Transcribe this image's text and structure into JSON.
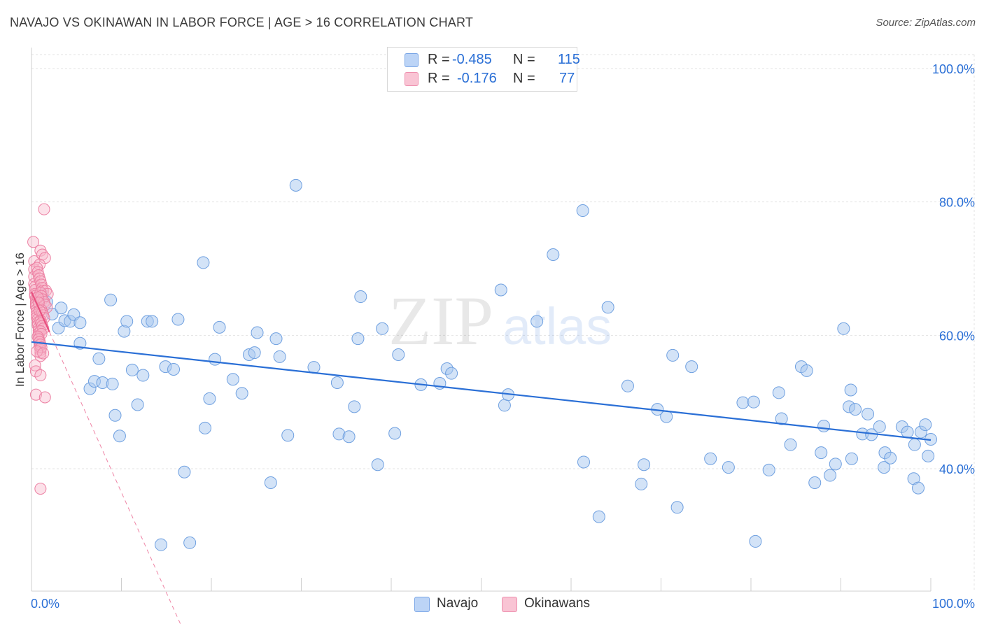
{
  "title": "NAVAJO VS OKINAWAN IN LABOR FORCE | AGE > 16 CORRELATION CHART",
  "source": "Source: ZipAtlas.com",
  "watermark": {
    "zip": "ZIP",
    "atlas": "atlas"
  },
  "legend": {
    "rows": [
      {
        "r_label": "R =",
        "r_value": "-0.485",
        "n_label": "N =",
        "n_value": "115"
      },
      {
        "r_label": "R =",
        "r_value": "-0.176",
        "n_label": "N =",
        "n_value": "77"
      }
    ]
  },
  "bottom_legend": {
    "navajo": "Navajo",
    "okinawans": "Okinawans"
  },
  "colors": {
    "navajo_fill": "#a8c8f0",
    "navajo_stroke": "#6fa0e0",
    "navajo_line": "#2a6fd6",
    "okinawan_fill": "#f7b3c8",
    "okinawan_stroke": "#ec7fa2",
    "okinawan_line": "#e8507f",
    "axis_text": "#2a6fd6"
  },
  "chart_data": {
    "type": "scatter",
    "title": "NAVAJO VS OKINAWAN IN LABOR FORCE | AGE > 16 CORRELATION CHART",
    "xlabel": "",
    "ylabel": "In Labor Force | Age > 16",
    "xlim": [
      0,
      100
    ],
    "ylim": [
      20,
      100
    ],
    "x_tick_labels": [
      "0.0%",
      "100.0%"
    ],
    "y_tick_labels": [
      "100.0%",
      "80.0%",
      "60.0%",
      "40.0%"
    ],
    "y_ticks": [
      100,
      80,
      60,
      40
    ],
    "series": [
      {
        "name": "Navajo",
        "trend": {
          "x": [
            0,
            100
          ],
          "y": [
            59.0,
            44.3
          ]
        },
        "points": [
          [
            1.2,
            66.1
          ],
          [
            1.7,
            65.0
          ],
          [
            2.3,
            63.2
          ],
          [
            3.0,
            61.1
          ],
          [
            3.3,
            64.1
          ],
          [
            3.7,
            62.2
          ],
          [
            4.3,
            62.1
          ],
          [
            4.7,
            63.1
          ],
          [
            5.4,
            61.9
          ],
          [
            5.4,
            58.8
          ],
          [
            6.5,
            52.0
          ],
          [
            7.0,
            53.1
          ],
          [
            7.5,
            56.5
          ],
          [
            7.9,
            52.9
          ],
          [
            8.8,
            65.3
          ],
          [
            9.3,
            48.0
          ],
          [
            9.8,
            44.9
          ],
          [
            10.3,
            60.6
          ],
          [
            10.6,
            62.1
          ],
          [
            11.2,
            54.8
          ],
          [
            11.8,
            49.6
          ],
          [
            12.4,
            54.0
          ],
          [
            12.9,
            62.1
          ],
          [
            13.4,
            62.1
          ],
          [
            14.4,
            28.6
          ],
          [
            14.9,
            55.3
          ],
          [
            15.8,
            54.9
          ],
          [
            16.3,
            62.4
          ],
          [
            17.0,
            39.5
          ],
          [
            17.6,
            28.9
          ],
          [
            19.1,
            70.9
          ],
          [
            19.3,
            46.1
          ],
          [
            19.8,
            50.5
          ],
          [
            20.4,
            56.4
          ],
          [
            20.9,
            61.2
          ],
          [
            22.4,
            53.4
          ],
          [
            23.4,
            51.3
          ],
          [
            24.2,
            57.1
          ],
          [
            24.8,
            57.4
          ],
          [
            25.1,
            60.4
          ],
          [
            26.6,
            37.9
          ],
          [
            27.2,
            59.5
          ],
          [
            27.6,
            56.8
          ],
          [
            28.5,
            45.0
          ],
          [
            29.4,
            82.5
          ],
          [
            31.4,
            55.2
          ],
          [
            34.0,
            52.9
          ],
          [
            34.2,
            45.2
          ],
          [
            35.3,
            44.8
          ],
          [
            35.9,
            49.3
          ],
          [
            36.3,
            59.5
          ],
          [
            36.6,
            65.8
          ],
          [
            38.5,
            40.6
          ],
          [
            39.0,
            61.0
          ],
          [
            40.4,
            45.3
          ],
          [
            40.8,
            57.1
          ],
          [
            43.3,
            52.6
          ],
          [
            45.4,
            52.8
          ],
          [
            46.2,
            55.0
          ],
          [
            46.7,
            54.3
          ],
          [
            52.2,
            66.8
          ],
          [
            52.6,
            49.5
          ],
          [
            53.0,
            51.1
          ],
          [
            56.2,
            62.1
          ],
          [
            58.0,
            72.1
          ],
          [
            61.3,
            78.7
          ],
          [
            61.4,
            41.0
          ],
          [
            63.1,
            32.8
          ],
          [
            64.1,
            64.2
          ],
          [
            66.3,
            52.4
          ],
          [
            67.8,
            37.7
          ],
          [
            68.1,
            40.6
          ],
          [
            69.6,
            48.9
          ],
          [
            70.6,
            47.8
          ],
          [
            71.3,
            57.0
          ],
          [
            71.8,
            34.2
          ],
          [
            73.4,
            55.3
          ],
          [
            75.5,
            41.5
          ],
          [
            77.5,
            40.2
          ],
          [
            79.1,
            49.9
          ],
          [
            80.3,
            50.0
          ],
          [
            80.5,
            29.1
          ],
          [
            82.0,
            39.8
          ],
          [
            83.1,
            51.4
          ],
          [
            83.4,
            47.5
          ],
          [
            84.4,
            43.6
          ],
          [
            85.6,
            55.3
          ],
          [
            86.2,
            54.7
          ],
          [
            87.1,
            37.9
          ],
          [
            87.8,
            42.4
          ],
          [
            88.1,
            46.4
          ],
          [
            88.8,
            39.0
          ],
          [
            89.4,
            40.7
          ],
          [
            90.3,
            61.0
          ],
          [
            90.9,
            49.3
          ],
          [
            91.1,
            51.8
          ],
          [
            91.2,
            41.5
          ],
          [
            91.6,
            48.9
          ],
          [
            92.4,
            45.2
          ],
          [
            93.0,
            48.2
          ],
          [
            93.4,
            45.1
          ],
          [
            94.3,
            46.3
          ],
          [
            94.8,
            40.2
          ],
          [
            94.9,
            42.4
          ],
          [
            95.5,
            41.6
          ],
          [
            96.8,
            46.3
          ],
          [
            97.4,
            45.5
          ],
          [
            98.1,
            38.5
          ],
          [
            98.2,
            43.6
          ],
          [
            98.6,
            37.1
          ],
          [
            98.9,
            45.5
          ],
          [
            99.4,
            46.6
          ],
          [
            99.7,
            41.9
          ],
          [
            100.0,
            44.4
          ],
          [
            9.0,
            52.7
          ]
        ]
      },
      {
        "name": "Okinawans",
        "trend": {
          "x": [
            0,
            2.0
          ],
          "y": [
            66.5,
            60.5
          ]
        },
        "trend_dashed": {
          "x": [
            2.0,
            17.0
          ],
          "y": [
            60.5,
            15.4
          ]
        },
        "points": [
          [
            0.2,
            74.0
          ],
          [
            0.3,
            71.1
          ],
          [
            0.3,
            69.9
          ],
          [
            0.3,
            68.8
          ],
          [
            0.3,
            67.7
          ],
          [
            0.4,
            67.3
          ],
          [
            0.4,
            66.8
          ],
          [
            0.4,
            66.2
          ],
          [
            0.4,
            65.9
          ],
          [
            0.5,
            65.5
          ],
          [
            0.5,
            65.0
          ],
          [
            0.5,
            64.7
          ],
          [
            0.5,
            64.3
          ],
          [
            0.6,
            63.9
          ],
          [
            0.6,
            63.5
          ],
          [
            0.6,
            63.1
          ],
          [
            0.6,
            62.7
          ],
          [
            0.7,
            62.4
          ],
          [
            0.7,
            61.9
          ],
          [
            0.7,
            61.5
          ],
          [
            0.8,
            61.1
          ],
          [
            0.8,
            60.7
          ],
          [
            0.8,
            60.3
          ],
          [
            0.8,
            59.6
          ],
          [
            0.9,
            59.1
          ],
          [
            0.9,
            58.7
          ],
          [
            0.9,
            58.3
          ],
          [
            1.0,
            57.8
          ],
          [
            1.0,
            57.4
          ],
          [
            1.0,
            56.9
          ],
          [
            0.4,
            55.5
          ],
          [
            0.5,
            54.6
          ],
          [
            1.0,
            54.0
          ],
          [
            0.5,
            51.1
          ],
          [
            1.5,
            50.7
          ],
          [
            1.0,
            37.0
          ],
          [
            1.4,
            78.9
          ],
          [
            1.0,
            72.7
          ],
          [
            1.2,
            72.1
          ],
          [
            1.5,
            71.6
          ],
          [
            0.9,
            70.6
          ],
          [
            0.6,
            70.1
          ],
          [
            0.7,
            69.5
          ],
          [
            0.8,
            69.0
          ],
          [
            0.9,
            68.5
          ],
          [
            1.0,
            68.1
          ],
          [
            1.1,
            67.6
          ],
          [
            1.2,
            67.1
          ],
          [
            1.3,
            66.7
          ],
          [
            1.6,
            66.7
          ],
          [
            1.8,
            66.2
          ],
          [
            1.0,
            66.4
          ],
          [
            1.1,
            65.9
          ],
          [
            1.2,
            65.4
          ],
          [
            1.4,
            65.0
          ],
          [
            1.5,
            64.6
          ],
          [
            1.7,
            64.2
          ],
          [
            1.1,
            63.8
          ],
          [
            1.2,
            63.4
          ],
          [
            1.3,
            63.0
          ],
          [
            1.4,
            62.6
          ],
          [
            1.0,
            62.2
          ],
          [
            1.1,
            61.8
          ],
          [
            1.2,
            61.4
          ],
          [
            1.3,
            61.0
          ],
          [
            1.0,
            60.6
          ],
          [
            1.1,
            60.2
          ],
          [
            0.7,
            59.8
          ],
          [
            0.8,
            59.4
          ],
          [
            0.9,
            59.0
          ],
          [
            1.0,
            58.6
          ],
          [
            1.1,
            58.2
          ],
          [
            0.6,
            57.6
          ],
          [
            1.3,
            57.3
          ],
          [
            0.7,
            65.7
          ],
          [
            0.8,
            64.9
          ],
          [
            0.9,
            63.7
          ]
        ]
      }
    ]
  }
}
